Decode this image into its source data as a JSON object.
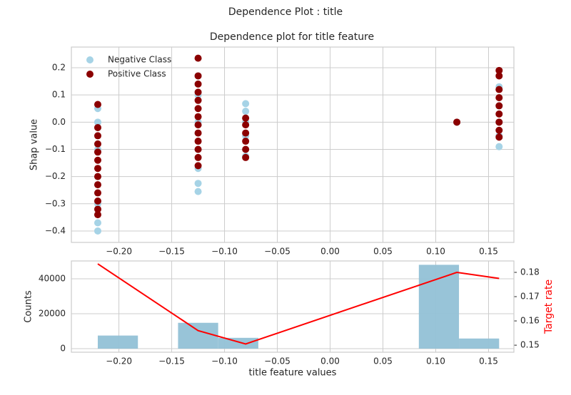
{
  "title": "Dependence Plot : title",
  "chart_data": [
    {
      "type": "scatter",
      "title": "Dependence plot for title feature",
      "ylabel": "Shap value",
      "xlim": [
        -0.245,
        0.174
      ],
      "ylim": [
        -0.442,
        0.276
      ],
      "xticks": [
        {
          "value": -0.2,
          "label": "−0.20"
        },
        {
          "value": -0.15,
          "label": "−0.15"
        },
        {
          "value": -0.1,
          "label": "−0.10"
        },
        {
          "value": -0.05,
          "label": "−0.05"
        },
        {
          "value": 0,
          "label": "0.00"
        },
        0.05,
        {
          "value": 0.1,
          "label": "0.10"
        },
        0.15
      ],
      "yticks": [
        {
          "value": -0.4,
          "label": "−0.4"
        },
        {
          "value": -0.3,
          "label": "−0.3"
        },
        {
          "value": -0.2,
          "label": "−0.2"
        },
        {
          "value": -0.1,
          "label": "−0.1"
        },
        {
          "value": 0,
          "label": "0.0"
        },
        0.1,
        0.2
      ],
      "grid": true,
      "legend": "upper left",
      "series": [
        {
          "name": "Negative Class",
          "color": "#a6d3e6",
          "x": [
            -0.22,
            -0.22,
            -0.22,
            -0.22,
            -0.22,
            -0.22,
            -0.22,
            -0.125,
            -0.125,
            -0.125,
            -0.125,
            -0.125,
            -0.125,
            -0.125,
            -0.08,
            -0.08,
            -0.08,
            -0.08,
            -0.08,
            0.12,
            0.16,
            0.16,
            0.16,
            0.16,
            0.16
          ],
          "values": [
            -0.4,
            -0.37,
            -0.3,
            -0.2,
            -0.1,
            0.0,
            0.05,
            -0.255,
            -0.225,
            -0.17,
            -0.1,
            0.0,
            0.1,
            0.17,
            -0.125,
            -0.05,
            0.0,
            0.04,
            0.068,
            0.0,
            -0.09,
            -0.05,
            0.0,
            0.06,
            0.13
          ]
        },
        {
          "name": "Positive Class",
          "color": "#8b0000",
          "x": [
            -0.22,
            -0.22,
            -0.22,
            -0.22,
            -0.22,
            -0.22,
            -0.22,
            -0.22,
            -0.22,
            -0.22,
            -0.22,
            -0.22,
            -0.22,
            -0.125,
            -0.125,
            -0.125,
            -0.125,
            -0.125,
            -0.125,
            -0.125,
            -0.125,
            -0.125,
            -0.125,
            -0.125,
            -0.125,
            -0.125,
            -0.08,
            -0.08,
            -0.08,
            -0.08,
            -0.08,
            -0.08,
            0.12,
            0.16,
            0.16,
            0.16,
            0.16,
            0.16,
            0.16,
            0.16,
            0.16,
            0.16
          ],
          "values": [
            -0.34,
            -0.32,
            -0.29,
            -0.26,
            -0.23,
            -0.2,
            -0.17,
            -0.14,
            -0.11,
            -0.08,
            -0.05,
            -0.02,
            0.065,
            -0.16,
            -0.13,
            -0.1,
            -0.07,
            -0.04,
            -0.01,
            0.02,
            0.05,
            0.08,
            0.11,
            0.14,
            0.17,
            0.235,
            -0.13,
            -0.1,
            -0.07,
            -0.04,
            -0.01,
            0.015,
            0.0,
            -0.055,
            -0.03,
            0.0,
            0.03,
            0.06,
            0.09,
            0.12,
            0.17,
            0.19
          ]
        }
      ]
    },
    {
      "type": "histogram",
      "xlabel": "title feature values",
      "ylabel": "Counts",
      "y2label": "Target rate",
      "bins": [
        -0.22,
        -0.182,
        -0.144,
        -0.106,
        -0.068,
        -0.03,
        0.008,
        0.046,
        0.084,
        0.122,
        0.16
      ],
      "values": [
        7500,
        0,
        14800,
        6200,
        0,
        0,
        0,
        0,
        48000,
        5800
      ],
      "color": "#92c1d6",
      "xlim": [
        -0.245,
        0.174
      ],
      "ylim": [
        -2040,
        50200
      ],
      "y2lim": [
        0.1471,
        0.1847
      ],
      "xticks": [
        {
          "value": -0.2,
          "label": "−0.20"
        },
        {
          "value": -0.15,
          "label": "−0.15"
        },
        {
          "value": -0.1,
          "label": "−0.10"
        },
        {
          "value": -0.05,
          "label": "−0.05"
        },
        {
          "value": 0,
          "label": "0.00"
        },
        0.05,
        {
          "value": 0.1,
          "label": "0.10"
        },
        0.15
      ],
      "yticks": [
        0,
        20000,
        40000
      ],
      "y2ticks": [
        0.15,
        0.16,
        0.17,
        0.18
      ],
      "y2color": "#ff0000",
      "grid": true,
      "series": [
        {
          "type": "line",
          "axis": "y2",
          "color": "#ff0000",
          "x": [
            -0.22,
            -0.125,
            -0.08,
            0.12,
            0.16
          ],
          "values": [
            0.1835,
            0.156,
            0.1505,
            0.18,
            0.1775
          ]
        }
      ]
    }
  ]
}
